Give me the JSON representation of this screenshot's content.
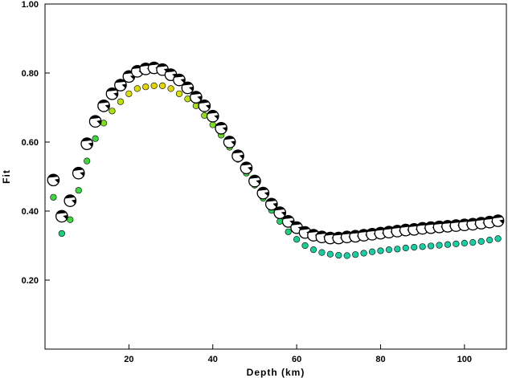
{
  "chart_data": {
    "type": "scatter",
    "title": "",
    "xlabel": "Depth (km)",
    "ylabel": "Fit",
    "xlim": [
      0,
      110
    ],
    "ylim": [
      0.0,
      1.0
    ],
    "x_ticks": [
      20,
      40,
      60,
      80,
      100
    ],
    "x_tick_labels": [
      "20",
      "40",
      "60",
      "80",
      "100"
    ],
    "y_ticks": [
      0.2,
      0.4,
      0.6,
      0.8,
      1.0
    ],
    "y_tick_labels": [
      "0.20",
      "0.40",
      "0.60",
      "0.80",
      "1.00"
    ],
    "grid": false,
    "legend": "none",
    "series": [
      {
        "marker": "focal-mechanism-beachball",
        "color": "#000000",
        "x": [
          2,
          4,
          6,
          8,
          10,
          12,
          14,
          16,
          18,
          20,
          22,
          24,
          26,
          28,
          30,
          32,
          34,
          36,
          38,
          40,
          42,
          44,
          46,
          48,
          50,
          52,
          54,
          56,
          58,
          60,
          62,
          64,
          66,
          68,
          70,
          72,
          74,
          76,
          78,
          80,
          82,
          84,
          86,
          88,
          90,
          92,
          94,
          96,
          98,
          100,
          102,
          104,
          106,
          108
        ],
        "y": [
          0.49,
          0.385,
          0.43,
          0.51,
          0.595,
          0.66,
          0.705,
          0.74,
          0.765,
          0.79,
          0.805,
          0.812,
          0.815,
          0.81,
          0.795,
          0.78,
          0.757,
          0.73,
          0.705,
          0.675,
          0.64,
          0.6,
          0.56,
          0.525,
          0.487,
          0.452,
          0.42,
          0.395,
          0.37,
          0.352,
          0.338,
          0.33,
          0.325,
          0.322,
          0.322,
          0.325,
          0.327,
          0.33,
          0.333,
          0.336,
          0.339,
          0.342,
          0.345,
          0.347,
          0.35,
          0.352,
          0.354,
          0.356,
          0.358,
          0.36,
          0.362,
          0.365,
          0.368,
          0.372
        ]
      },
      {
        "marker": "circle",
        "x": [
          2,
          4,
          6,
          8,
          10,
          12,
          14,
          16,
          18,
          20,
          22,
          24,
          26,
          28,
          30,
          32,
          34,
          36,
          38,
          40,
          42,
          44,
          46,
          48,
          50,
          52,
          54,
          56,
          58,
          60,
          62,
          64,
          66,
          68,
          70,
          72,
          74,
          76,
          78,
          80,
          82,
          84,
          86,
          88,
          90,
          92,
          94,
          96,
          98,
          100,
          102,
          104,
          106,
          108
        ],
        "y": [
          0.44,
          0.335,
          0.375,
          0.46,
          0.545,
          0.61,
          0.655,
          0.69,
          0.717,
          0.74,
          0.755,
          0.76,
          0.763,
          0.763,
          0.755,
          0.74,
          0.725,
          0.705,
          0.677,
          0.65,
          0.62,
          0.585,
          0.55,
          0.51,
          0.475,
          0.437,
          0.402,
          0.37,
          0.34,
          0.318,
          0.3,
          0.288,
          0.28,
          0.275,
          0.272,
          0.271,
          0.274,
          0.278,
          0.282,
          0.285,
          0.288,
          0.29,
          0.293,
          0.295,
          0.297,
          0.299,
          0.301,
          0.303,
          0.305,
          0.307,
          0.309,
          0.312,
          0.316,
          0.32
        ],
        "colors": [
          "#3ed63e",
          "#1bd17d",
          "#3ed63e",
          "#3ed63e",
          "#3ed63e",
          "#3ed63e",
          "#80dd1e",
          "#a8e010",
          "#bfe00a",
          "#d8e000",
          "#dcdc00",
          "#e3d600",
          "#e3d600",
          "#e3d600",
          "#e3d600",
          "#d8e000",
          "#bfe00a",
          "#a8e010",
          "#90de18",
          "#80dd1e",
          "#6cdb24",
          "#5ad82c",
          "#4cd634",
          "#3ed63e",
          "#3ed63e",
          "#32d54a",
          "#28d35a",
          "#20d26a",
          "#1bd17d",
          "#18d08c",
          "#18d08c",
          "#17cf96",
          "#17cf9c",
          "#17cfa2",
          "#17cfa2",
          "#17cfa2",
          "#17cfa2",
          "#17cfa2",
          "#17cfa2",
          "#17cfa2",
          "#17cfa2",
          "#17cfa2",
          "#17cfa2",
          "#17cfa2",
          "#17cfa2",
          "#17cfa2",
          "#17cfa2",
          "#17cfa2",
          "#17cfa2",
          "#17cfa2",
          "#17cfa2",
          "#17cfa2",
          "#17cfa2",
          "#17cfa2"
        ]
      }
    ]
  }
}
